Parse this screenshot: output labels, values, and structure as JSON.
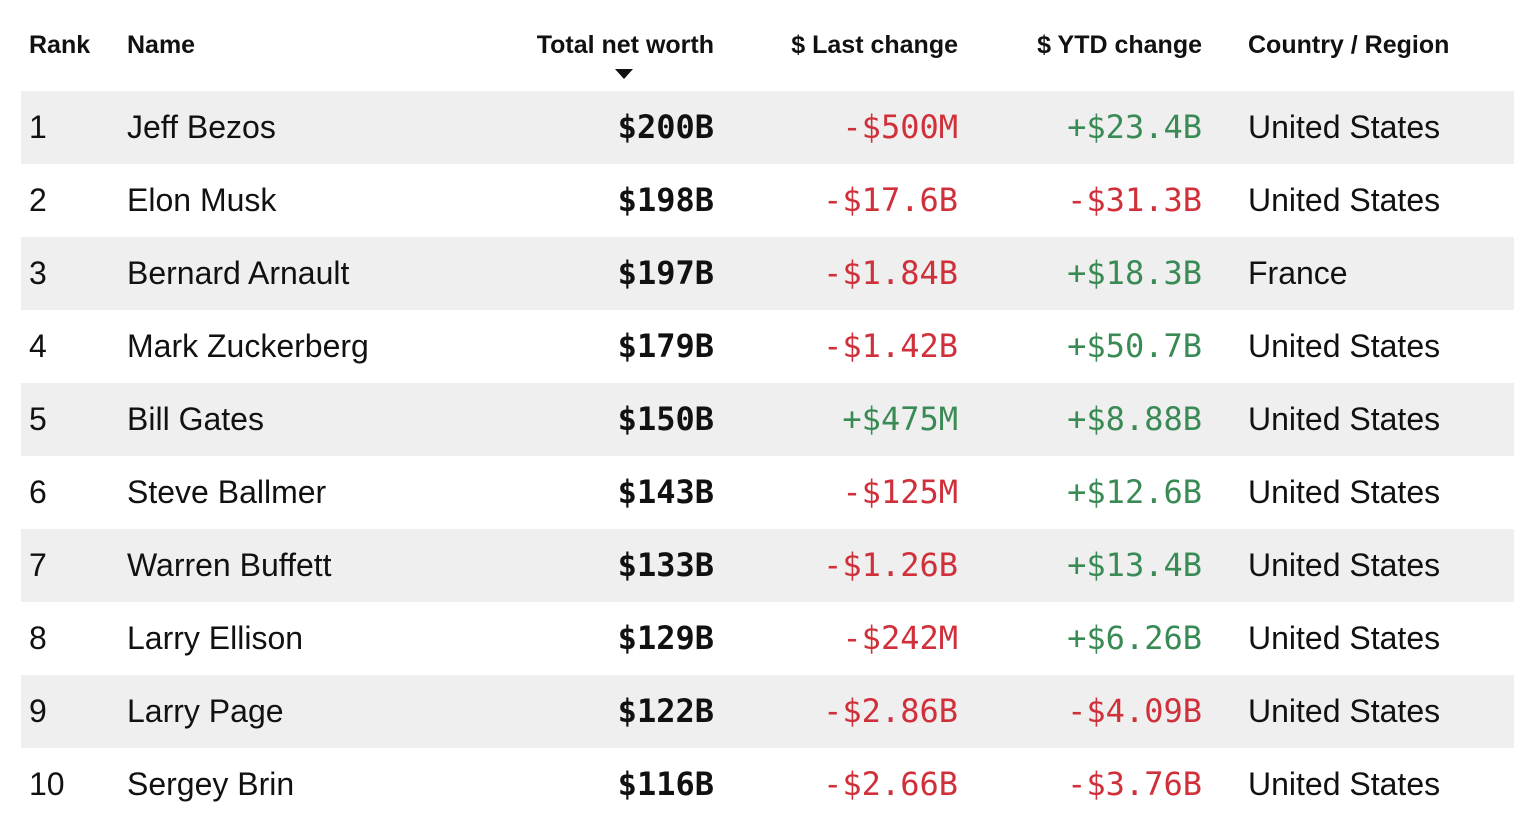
{
  "colors": {
    "negative": "#d0303a",
    "positive": "#3a8a55",
    "row_shade": "#efefef"
  },
  "table": {
    "sort_indicator_icon": "caret-down-icon",
    "headers": {
      "rank": "Rank",
      "name": "Name",
      "net_worth": "Total net worth",
      "last_change": "$ Last change",
      "ytd_change": "$ YTD change",
      "country": "Country / Region"
    },
    "rows": [
      {
        "rank": "1",
        "name": "Jeff Bezos",
        "net_worth": "$200B",
        "last_change": "-$500M",
        "ytd_change": "+$23.4B",
        "country": "United States"
      },
      {
        "rank": "2",
        "name": "Elon Musk",
        "net_worth": "$198B",
        "last_change": "-$17.6B",
        "ytd_change": "-$31.3B",
        "country": "United States"
      },
      {
        "rank": "3",
        "name": "Bernard Arnault",
        "net_worth": "$197B",
        "last_change": "-$1.84B",
        "ytd_change": "+$18.3B",
        "country": "France"
      },
      {
        "rank": "4",
        "name": "Mark Zuckerberg",
        "net_worth": "$179B",
        "last_change": "-$1.42B",
        "ytd_change": "+$50.7B",
        "country": "United States"
      },
      {
        "rank": "5",
        "name": "Bill Gates",
        "net_worth": "$150B",
        "last_change": "+$475M",
        "ytd_change": "+$8.88B",
        "country": "United States"
      },
      {
        "rank": "6",
        "name": "Steve Ballmer",
        "net_worth": "$143B",
        "last_change": "-$125M",
        "ytd_change": "+$12.6B",
        "country": "United States"
      },
      {
        "rank": "7",
        "name": "Warren Buffett",
        "net_worth": "$133B",
        "last_change": "-$1.26B",
        "ytd_change": "+$13.4B",
        "country": "United States"
      },
      {
        "rank": "8",
        "name": "Larry Ellison",
        "net_worth": "$129B",
        "last_change": "-$242M",
        "ytd_change": "+$6.26B",
        "country": "United States"
      },
      {
        "rank": "9",
        "name": "Larry Page",
        "net_worth": "$122B",
        "last_change": "-$2.86B",
        "ytd_change": "-$4.09B",
        "country": "United States"
      },
      {
        "rank": "10",
        "name": "Sergey Brin",
        "net_worth": "$116B",
        "last_change": "-$2.66B",
        "ytd_change": "-$3.76B",
        "country": "United States"
      }
    ]
  }
}
